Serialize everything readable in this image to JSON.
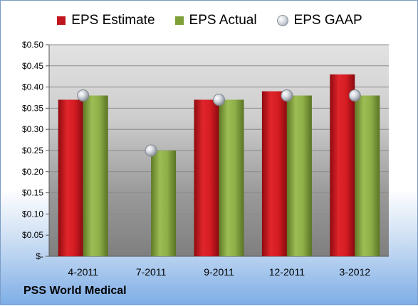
{
  "company_name": "PSS World Medical",
  "chart_data": {
    "type": "bar",
    "categories": [
      "4-2011",
      "7-2011",
      "9-2011",
      "12-2011",
      "3-2012"
    ],
    "series": [
      {
        "name": "EPS Estimate",
        "values": [
          0.37,
          null,
          0.37,
          0.39,
          0.43
        ],
        "color": "#c0151c"
      },
      {
        "name": "EPS Actual",
        "values": [
          0.38,
          0.25,
          0.37,
          0.38,
          0.38
        ],
        "color": "#7f9f39"
      },
      {
        "name": "EPS GAAP",
        "values": [
          0.38,
          0.25,
          0.37,
          0.38,
          0.38
        ],
        "color": "#b8bec8",
        "marker": "circle"
      }
    ],
    "ylim": [
      0,
      0.5
    ],
    "yticks": [
      0,
      0.05,
      0.1,
      0.15,
      0.2,
      0.25,
      0.3,
      0.35,
      0.4,
      0.45,
      0.5
    ],
    "ytick_labels": [
      "$-",
      "$0.05",
      "$0.10",
      "$0.15",
      "$0.20",
      "$0.25",
      "$0.30",
      "$0.35",
      "$0.40",
      "$0.45",
      "$0.50"
    ],
    "legend_position": "top",
    "grid": true
  }
}
